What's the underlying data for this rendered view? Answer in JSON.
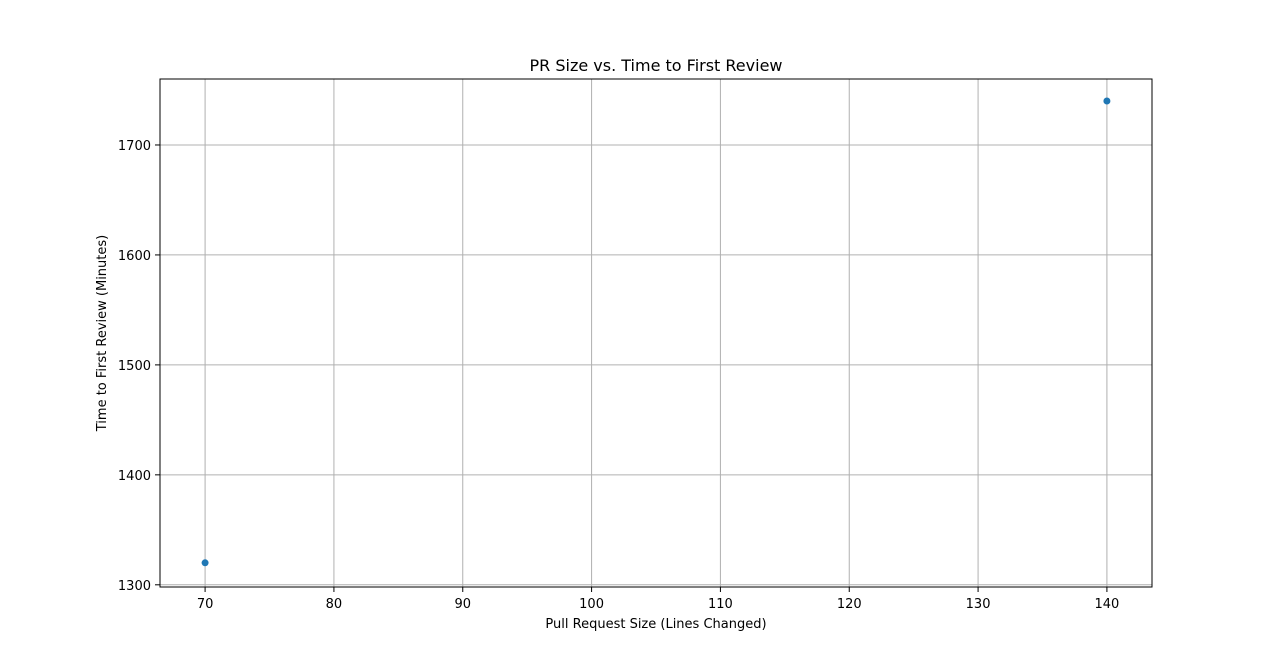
{
  "chart_data": {
    "type": "scatter",
    "title": "PR Size vs. Time to First Review",
    "xlabel": "Pull Request Size (Lines Changed)",
    "ylabel": "Time to First Review (Minutes)",
    "xlim": [
      66.5,
      143.5
    ],
    "ylim": [
      1298,
      1760
    ],
    "xticks": [
      70,
      80,
      90,
      100,
      110,
      120,
      130,
      140
    ],
    "yticks": [
      1300,
      1400,
      1500,
      1600,
      1700
    ],
    "grid": true,
    "series": [
      {
        "color": "#1f77b4",
        "points": [
          {
            "x": 70,
            "y": 1320
          },
          {
            "x": 140,
            "y": 1740
          }
        ]
      }
    ]
  }
}
